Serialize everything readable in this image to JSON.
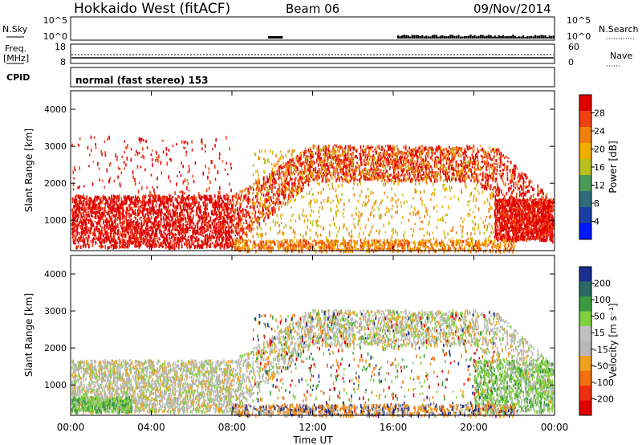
{
  "header": {
    "title": "Hokkaido West (fitACF)",
    "beam": "Beam 06",
    "date": "09/Nov/2014"
  },
  "strip_panels": {
    "nsky": {
      "label": "N.Sky",
      "ticks_left": [
        "10^5",
        "10^0"
      ],
      "ticks_right": [
        "10^5",
        "10^0"
      ],
      "right_label": "N.Search"
    },
    "freq": {
      "label_line1": "Freq.",
      "label_line2": "[MHz]",
      "ticks_left": [
        "18",
        "8"
      ],
      "ticks_right": [
        "60",
        "0"
      ],
      "right_label": "Nave"
    },
    "cpid": {
      "label": "CPID",
      "text": "normal (fast stereo) 153"
    }
  },
  "colors": {
    "power_scale": [
      "#0018ff",
      "#1a3fa0",
      "#2d6a7a",
      "#4a9a5a",
      "#b8c020",
      "#f0b000",
      "#f08010",
      "#f04010",
      "#e00000"
    ],
    "velocity_scale": [
      "#e00000",
      "#f03010",
      "#f07010",
      "#f0a020",
      "#b8b8b8",
      "#c0c0c0",
      "#80d040",
      "#3a9a40",
      "#2a6a60",
      "#1a3090"
    ]
  },
  "chart_data": [
    {
      "type": "heatmap",
      "name": "power",
      "xlabel": "Time UT",
      "ylabel": "Slant Range [km]",
      "x_ticks": [
        "00:00",
        "04:00",
        "08:00",
        "12:00",
        "16:00",
        "20:00",
        "00:00"
      ],
      "xlim_hours": [
        0,
        24
      ],
      "y_ticks": [
        1000,
        2000,
        3000,
        4000
      ],
      "ylim_km": [
        180,
        4500
      ],
      "colorbar_label": "Power [dB]",
      "colorbar_ticks": [
        "28",
        "24",
        "20",
        "16",
        "12",
        "8",
        "4"
      ],
      "colorbar_range": [
        0,
        30
      ]
    },
    {
      "type": "heatmap",
      "name": "velocity",
      "xlabel": "Time UT",
      "ylabel": "Slant Range [km]",
      "x_ticks": [
        "00:00",
        "04:00",
        "08:00",
        "12:00",
        "16:00",
        "20:00",
        "00:00"
      ],
      "xlim_hours": [
        0,
        24
      ],
      "y_ticks": [
        1000,
        2000,
        3000,
        4000
      ],
      "ylim_km": [
        180,
        4500
      ],
      "colorbar_label": "Velocity [m s⁻¹]",
      "colorbar_ticks": [
        "200",
        "100",
        "50",
        "15",
        "-15",
        "-50",
        "-100",
        "-200"
      ],
      "colorbar_range": [
        -250,
        250
      ]
    }
  ]
}
